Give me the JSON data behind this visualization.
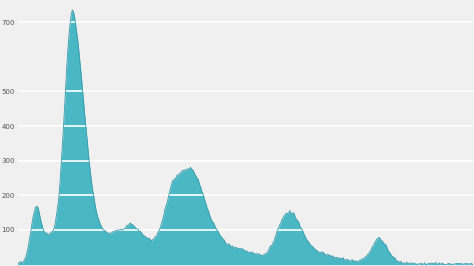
{
  "fill_color": "#4ab8c4",
  "line_color": "#389aaa",
  "background_color": "#f0f0f0",
  "grid_color": "#ffffff",
  "yticks": [
    100,
    200,
    300,
    400,
    500,
    700
  ],
  "ylim": [
    0,
    760
  ],
  "values": [
    5,
    5,
    6,
    7,
    8,
    10,
    14,
    20,
    30,
    45,
    60,
    80,
    100,
    120,
    140,
    155,
    165,
    170,
    165,
    155,
    140,
    125,
    110,
    100,
    95,
    92,
    90,
    88,
    87,
    88,
    90,
    95,
    100,
    110,
    125,
    145,
    170,
    200,
    240,
    290,
    340,
    390,
    450,
    510,
    570,
    620,
    660,
    695,
    720,
    735,
    730,
    715,
    695,
    670,
    645,
    615,
    580,
    545,
    510,
    475,
    440,
    405,
    370,
    335,
    300,
    270,
    245,
    220,
    200,
    182,
    165,
    150,
    137,
    126,
    117,
    110,
    105,
    100,
    97,
    95,
    93,
    92,
    91,
    92,
    93,
    94,
    95,
    96,
    97,
    98,
    99,
    100,
    101,
    102,
    103,
    105,
    107,
    110,
    113,
    115,
    117,
    118,
    117,
    115,
    113,
    110,
    107,
    104,
    101,
    98,
    95,
    92,
    89,
    86,
    83,
    80,
    77,
    75,
    73,
    72,
    71,
    72,
    73,
    76,
    80,
    85,
    92,
    100,
    110,
    120,
    132,
    145,
    158,
    170,
    182,
    195,
    207,
    218,
    228,
    237,
    244,
    250,
    255,
    258,
    260,
    263,
    266,
    268,
    270,
    272,
    274,
    276,
    277,
    278,
    278,
    277,
    275,
    272,
    268,
    263,
    257,
    250,
    242,
    233,
    224,
    214,
    204,
    194,
    184,
    174,
    164,
    155,
    146,
    138,
    130,
    123,
    116,
    110,
    104,
    98,
    92,
    87,
    82,
    77,
    73,
    69,
    65,
    62,
    59,
    57,
    55,
    53,
    52,
    51,
    50,
    50,
    49,
    48,
    47,
    46,
    45,
    44,
    43,
    42,
    41,
    40,
    39,
    38,
    37,
    36,
    35,
    34,
    33,
    32,
    31,
    30,
    29,
    28,
    27,
    27,
    28,
    29,
    31,
    33,
    36,
    40,
    45,
    51,
    57,
    64,
    72,
    80,
    89,
    98,
    107,
    116,
    124,
    131,
    137,
    142,
    146,
    149,
    151,
    152,
    152,
    151,
    149,
    146,
    142,
    137,
    132,
    126,
    120,
    113,
    107,
    100,
    93,
    87,
    81,
    75,
    70,
    65,
    60,
    56,
    52,
    49,
    46,
    43,
    41,
    39,
    37,
    35,
    34,
    33,
    32,
    31,
    30,
    29,
    28,
    27,
    26,
    25,
    24,
    23,
    22,
    21,
    20,
    20,
    19,
    19,
    18,
    17,
    17,
    16,
    15,
    14,
    14,
    13,
    12,
    12,
    11,
    11,
    10,
    10,
    10,
    10,
    11,
    11,
    12,
    13,
    15,
    17,
    20,
    24,
    28,
    33,
    38,
    44,
    50,
    56,
    62,
    67,
    71,
    74,
    75,
    74,
    72,
    69,
    65,
    60,
    55,
    50,
    44,
    39,
    34,
    29,
    25,
    21,
    18,
    15,
    12,
    10,
    8,
    7,
    6,
    5,
    5,
    4,
    4,
    4,
    3,
    3,
    3,
    3,
    3,
    3,
    2,
    2,
    2,
    2,
    2,
    2,
    2,
    2,
    2,
    2,
    2,
    2,
    2,
    2,
    2,
    2,
    2,
    2,
    2,
    2,
    2,
    2,
    2,
    2,
    2,
    2,
    2,
    2,
    2,
    2,
    2,
    2,
    2,
    2,
    2,
    2,
    2,
    2,
    2,
    2,
    2,
    2,
    2,
    2,
    2,
    2,
    2,
    2,
    2,
    2,
    2,
    2,
    2
  ]
}
